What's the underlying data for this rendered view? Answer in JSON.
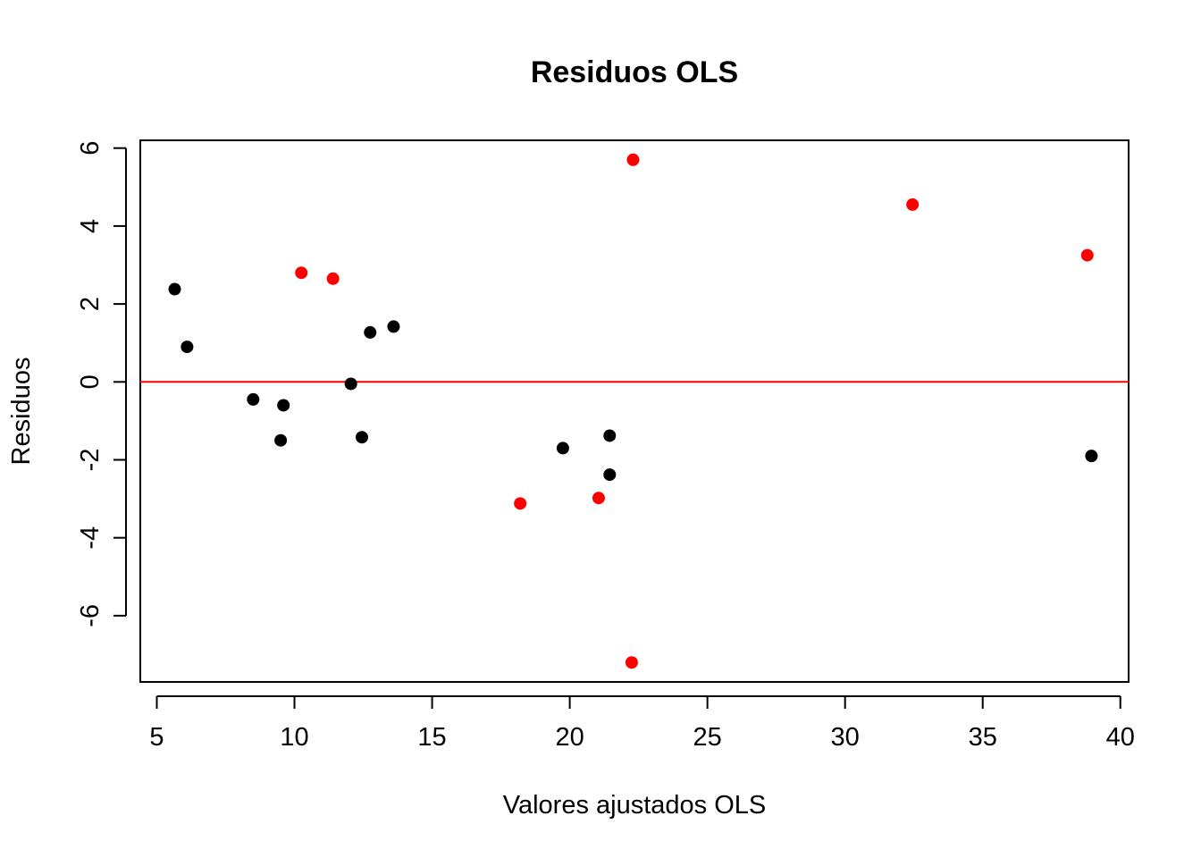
{
  "chart_data": {
    "type": "scatter",
    "title": "Residuos OLS",
    "xlabel": "Valores ajustados OLS",
    "ylabel": "Residuos",
    "xlim": [
      4.4,
      40.3
    ],
    "ylim": [
      -7.7,
      6.2
    ],
    "x_ticks": [
      5,
      10,
      15,
      20,
      25,
      30,
      35,
      40
    ],
    "y_ticks": [
      -6,
      -4,
      -2,
      0,
      2,
      4,
      6
    ],
    "grid": false,
    "legend": "none",
    "reference_line": {
      "y": 0,
      "color": "#ff0000"
    },
    "series": [
      {
        "color": "#000000",
        "points": [
          [
            5.65,
            2.38
          ],
          [
            6.1,
            0.9
          ],
          [
            8.5,
            -0.45
          ],
          [
            9.5,
            -1.5
          ],
          [
            9.6,
            -0.6
          ],
          [
            12.05,
            -0.05
          ],
          [
            12.45,
            -1.42
          ],
          [
            12.75,
            1.27
          ],
          [
            13.6,
            1.42
          ],
          [
            19.75,
            -1.7
          ],
          [
            21.45,
            -1.38
          ],
          [
            21.45,
            -2.38
          ],
          [
            38.95,
            -1.9
          ]
        ]
      },
      {
        "color": "#ff0000",
        "points": [
          [
            10.25,
            2.8
          ],
          [
            11.4,
            2.65
          ],
          [
            18.2,
            -3.12
          ],
          [
            21.05,
            -2.98
          ],
          [
            22.3,
            5.7
          ],
          [
            22.25,
            -7.2
          ],
          [
            32.45,
            4.55
          ],
          [
            38.8,
            3.25
          ]
        ]
      }
    ]
  }
}
